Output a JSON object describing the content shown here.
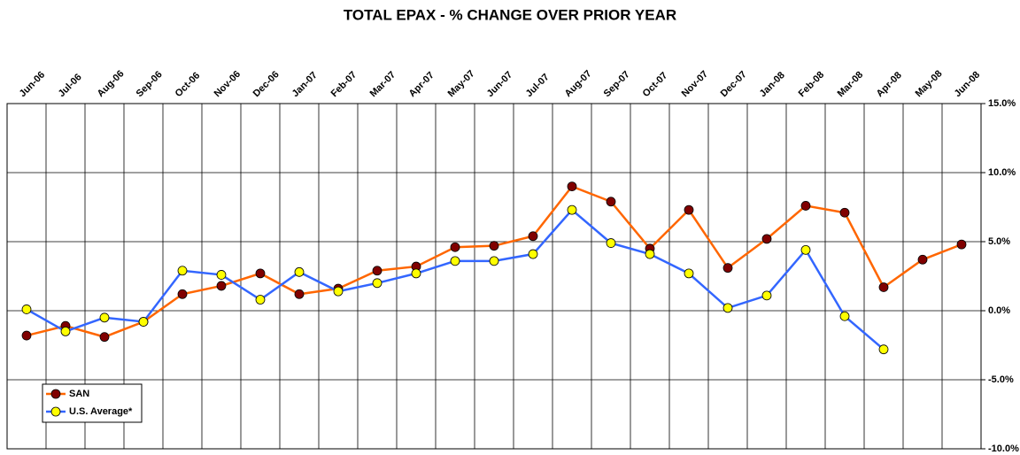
{
  "chart_data": {
    "type": "line",
    "title": "TOTAL EPAX - % CHANGE OVER PRIOR YEAR",
    "categories": [
      "Jun-06",
      "Jul-06",
      "Aug-06",
      "Sep-06",
      "Oct-06",
      "Nov-06",
      "Dec-06",
      "Jan-07",
      "Feb-07",
      "Mar-07",
      "Apr-07",
      "May-07",
      "Jun-07",
      "Jul-07",
      "Aug-07",
      "Sep-07",
      "Oct-07",
      "Nov-07",
      "Dec-07",
      "Jan-08",
      "Feb-08",
      "Mar-08",
      "Apr-08",
      "May-08",
      "Jun-08"
    ],
    "series": [
      {
        "name": "SAN",
        "color": "#ff6600",
        "marker_color": "#800000",
        "values": [
          -1.8,
          -1.1,
          -1.9,
          -0.8,
          1.2,
          1.8,
          2.7,
          1.2,
          1.6,
          2.9,
          3.2,
          4.6,
          4.7,
          5.4,
          9.0,
          7.9,
          4.5,
          7.3,
          3.1,
          5.2,
          7.6,
          7.1,
          1.7,
          3.7,
          4.8
        ]
      },
      {
        "name": "U.S. Average*",
        "color": "#3366ff",
        "marker_color": "#ffff00",
        "values": [
          0.1,
          -1.5,
          -0.5,
          -0.8,
          2.9,
          2.6,
          0.8,
          2.8,
          1.4,
          2.0,
          2.7,
          3.6,
          3.6,
          4.1,
          7.3,
          4.9,
          4.1,
          2.7,
          0.2,
          1.1,
          4.4,
          -0.4,
          -2.8,
          null,
          null
        ]
      }
    ],
    "ylim": [
      -10,
      15
    ],
    "yticks": [
      {
        "value": -10,
        "label": "-10.0%"
      },
      {
        "value": -5,
        "label": "-5.0%"
      },
      {
        "value": 0,
        "label": "0.0%"
      },
      {
        "value": 5,
        "label": "5.0%"
      },
      {
        "value": 10,
        "label": "10.0%"
      },
      {
        "value": 15,
        "label": "15.0%"
      }
    ],
    "grid": true,
    "legend": "lower left"
  }
}
